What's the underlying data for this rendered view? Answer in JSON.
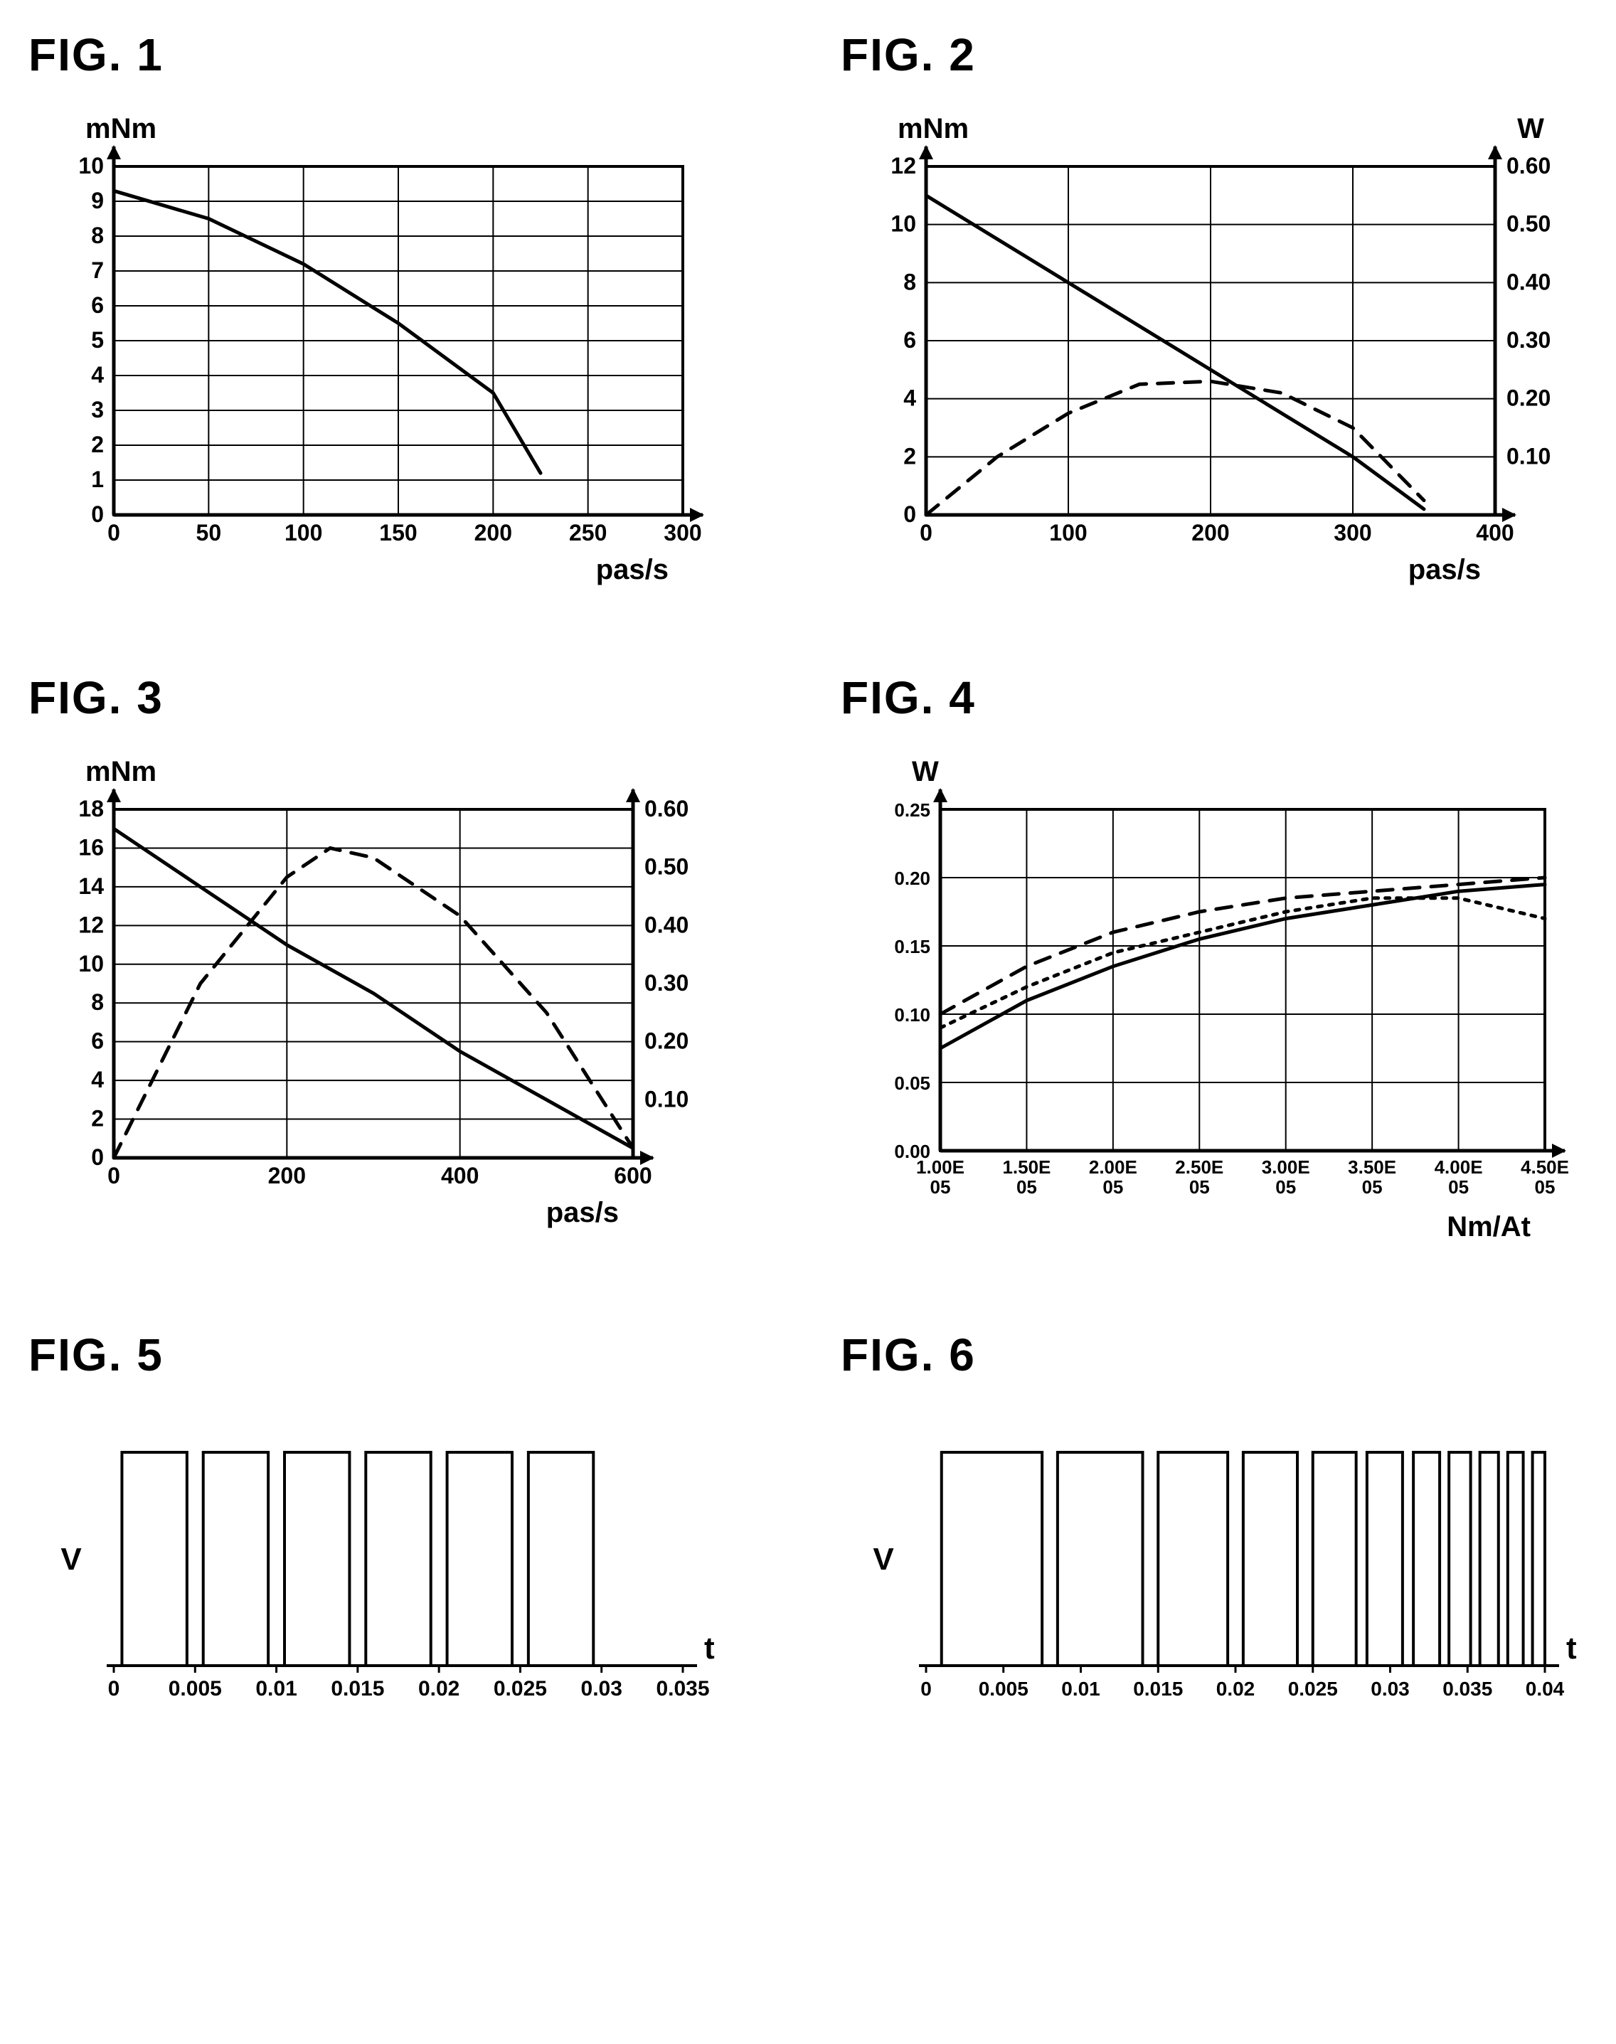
{
  "fig1": {
    "title": "FIG. 1",
    "type": "line",
    "ylabel": "mNm",
    "xlabel": "pas/s",
    "xlim": [
      0,
      300
    ],
    "xtick_step": 50,
    "ylim": [
      0,
      10
    ],
    "ytick_step": 1,
    "yticks": [
      0,
      1,
      2,
      3,
      4,
      5,
      6,
      7,
      8,
      9,
      10
    ],
    "xticks": [
      0,
      50,
      100,
      150,
      200,
      250,
      300
    ],
    "grid_color": "#000000",
    "line_color": "#000000",
    "line_width": 5,
    "background_color": "#ffffff",
    "label_fontsize": 40,
    "tick_fontsize": 32,
    "series": [
      {
        "style": "solid",
        "points": [
          [
            0,
            9.3
          ],
          [
            50,
            8.5
          ],
          [
            100,
            7.2
          ],
          [
            150,
            5.5
          ],
          [
            200,
            3.5
          ],
          [
            225,
            1.2
          ]
        ]
      }
    ]
  },
  "fig2": {
    "title": "FIG. 2",
    "type": "line",
    "ylabel": "mNm",
    "y2label": "W",
    "xlabel": "pas/s",
    "xlim": [
      0,
      400
    ],
    "xtick_step": 100,
    "ylim": [
      0,
      12
    ],
    "ytick_step": 2,
    "y2lim": [
      0,
      0.6
    ],
    "y2tick_step": 0.1,
    "yticks": [
      0,
      2,
      4,
      6,
      8,
      10,
      12
    ],
    "y2ticks": [
      0.1,
      0.2,
      0.3,
      0.4,
      0.5,
      0.6
    ],
    "xticks": [
      0,
      100,
      200,
      300,
      400
    ],
    "grid_color": "#000000",
    "line_color": "#000000",
    "line_width": 5,
    "background_color": "#ffffff",
    "label_fontsize": 40,
    "tick_fontsize": 32,
    "series": [
      {
        "style": "solid",
        "points": [
          [
            0,
            11
          ],
          [
            100,
            8
          ],
          [
            200,
            5
          ],
          [
            300,
            2
          ],
          [
            350,
            0.2
          ]
        ]
      },
      {
        "style": "dashed",
        "points": [
          [
            0,
            0
          ],
          [
            50,
            2
          ],
          [
            100,
            3.5
          ],
          [
            150,
            4.5
          ],
          [
            200,
            4.6
          ],
          [
            250,
            4.2
          ],
          [
            300,
            3
          ],
          [
            350,
            0.5
          ]
        ]
      }
    ]
  },
  "fig3": {
    "title": "FIG. 3",
    "type": "line",
    "ylabel": "mNm",
    "xlabel": "pas/s",
    "xlim": [
      0,
      600
    ],
    "xtick_step": 200,
    "ylim": [
      0,
      18
    ],
    "ytick_step": 2,
    "y2lim": [
      0,
      0.6
    ],
    "y2tick_step": 0.1,
    "yticks": [
      0,
      2,
      4,
      6,
      8,
      10,
      12,
      14,
      16,
      18
    ],
    "y2ticks": [
      0.1,
      0.2,
      0.3,
      0.4,
      0.5,
      0.6
    ],
    "xticks": [
      0,
      200,
      400,
      600
    ],
    "grid_color": "#000000",
    "line_color": "#000000",
    "line_width": 5,
    "background_color": "#ffffff",
    "label_fontsize": 40,
    "tick_fontsize": 32,
    "series": [
      {
        "style": "solid",
        "points": [
          [
            0,
            17
          ],
          [
            100,
            14
          ],
          [
            200,
            11
          ],
          [
            300,
            8.5
          ],
          [
            400,
            5.5
          ],
          [
            500,
            3
          ],
          [
            600,
            0.5
          ]
        ]
      },
      {
        "style": "dashed",
        "points": [
          [
            0,
            0
          ],
          [
            100,
            9
          ],
          [
            200,
            14.5
          ],
          [
            250,
            16
          ],
          [
            300,
            15.5
          ],
          [
            400,
            12.5
          ],
          [
            500,
            7.5
          ],
          [
            600,
            0.5
          ]
        ]
      }
    ]
  },
  "fig4": {
    "title": "FIG. 4",
    "type": "line",
    "ylabel": "W",
    "xlabel": "Nm/At",
    "xlim": [
      1.0,
      4.5
    ],
    "ylim": [
      0,
      0.25
    ],
    "ytick_step": 0.05,
    "yticks": [
      "0.00",
      "0.05",
      "0.10",
      "0.15",
      "0.20",
      "0.25"
    ],
    "xticks": [
      "1.00E\n05",
      "1.50E\n05",
      "2.00E\n05",
      "2.50E\n05",
      "3.00E\n05",
      "3.50E\n05",
      "4.00E\n05",
      "4.50E\n05"
    ],
    "xtick_vals": [
      1.0,
      1.5,
      2.0,
      2.5,
      3.0,
      3.5,
      4.0,
      4.5
    ],
    "grid_color": "#000000",
    "line_color": "#000000",
    "line_width": 5,
    "background_color": "#ffffff",
    "label_fontsize": 40,
    "tick_fontsize": 26,
    "series": [
      {
        "style": "solid",
        "points": [
          [
            1.0,
            0.075
          ],
          [
            1.5,
            0.11
          ],
          [
            2.0,
            0.135
          ],
          [
            2.5,
            0.155
          ],
          [
            3.0,
            0.17
          ],
          [
            3.5,
            0.18
          ],
          [
            4.0,
            0.19
          ],
          [
            4.5,
            0.195
          ]
        ]
      },
      {
        "style": "dashed",
        "points": [
          [
            1.0,
            0.1
          ],
          [
            1.5,
            0.135
          ],
          [
            2.0,
            0.16
          ],
          [
            2.5,
            0.175
          ],
          [
            3.0,
            0.185
          ],
          [
            3.5,
            0.19
          ],
          [
            4.0,
            0.195
          ],
          [
            4.5,
            0.2
          ]
        ]
      },
      {
        "style": "dotted",
        "points": [
          [
            1.0,
            0.09
          ],
          [
            1.5,
            0.12
          ],
          [
            2.0,
            0.145
          ],
          [
            2.5,
            0.16
          ],
          [
            3.0,
            0.175
          ],
          [
            3.5,
            0.185
          ],
          [
            4.0,
            0.185
          ],
          [
            4.5,
            0.17
          ]
        ]
      }
    ]
  },
  "fig5": {
    "title": "FIG. 5",
    "type": "pulse",
    "ylabel": "V",
    "xlabel": "t",
    "xlim": [
      0,
      0.035
    ],
    "xtick_step": 0.005,
    "xticks": [
      0,
      0.005,
      0.01,
      0.015,
      0.02,
      0.025,
      0.03,
      0.035
    ],
    "line_color": "#000000",
    "line_width": 4,
    "background_color": "#ffffff",
    "label_fontsize": 44,
    "tick_fontsize": 30,
    "pulse_height": 1.0,
    "pulses": [
      {
        "start": 0.0005,
        "end": 0.0045
      },
      {
        "start": 0.0055,
        "end": 0.0095
      },
      {
        "start": 0.0105,
        "end": 0.0145
      },
      {
        "start": 0.0155,
        "end": 0.0195
      },
      {
        "start": 0.0205,
        "end": 0.0245
      },
      {
        "start": 0.0255,
        "end": 0.0295
      }
    ]
  },
  "fig6": {
    "title": "FIG. 6",
    "type": "pulse",
    "ylabel": "V",
    "xlabel": "t",
    "xlim": [
      0,
      0.04
    ],
    "xtick_step": 0.005,
    "xticks": [
      0,
      0.005,
      0.01,
      0.015,
      0.02,
      0.025,
      0.03,
      0.035,
      0.04
    ],
    "line_color": "#000000",
    "line_width": 4,
    "background_color": "#ffffff",
    "label_fontsize": 44,
    "tick_fontsize": 28,
    "pulse_height": 1.0,
    "pulses": [
      {
        "start": 0.001,
        "end": 0.0075
      },
      {
        "start": 0.0085,
        "end": 0.014
      },
      {
        "start": 0.015,
        "end": 0.0195
      },
      {
        "start": 0.0205,
        "end": 0.024
      },
      {
        "start": 0.025,
        "end": 0.0278
      },
      {
        "start": 0.0285,
        "end": 0.0308
      },
      {
        "start": 0.0315,
        "end": 0.0332
      },
      {
        "start": 0.0338,
        "end": 0.0352
      },
      {
        "start": 0.0358,
        "end": 0.037
      },
      {
        "start": 0.0376,
        "end": 0.0386
      },
      {
        "start": 0.0392,
        "end": 0.04
      }
    ]
  }
}
